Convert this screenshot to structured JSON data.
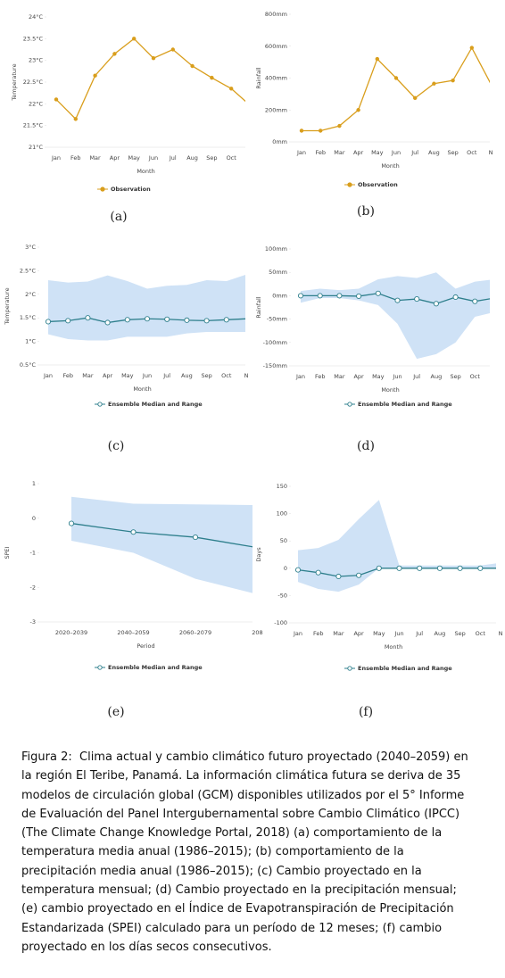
{
  "chart_data": [
    {
      "type": "line",
      "panel_label": "(a)",
      "ylabel": "Temperature",
      "xlabel": "Month",
      "categories": [
        "Jan",
        "Feb",
        "Mar",
        "Apr",
        "May",
        "Jun",
        "Jul",
        "Aug",
        "Sep",
        "Oct",
        null
      ],
      "series": [
        {
          "name": "Observation",
          "color": "#d99e1c",
          "values": [
            22.1,
            21.65,
            22.65,
            23.15,
            23.5,
            23.05,
            23.25,
            22.87,
            22.6,
            22.35,
            21.95
          ]
        }
      ],
      "ylim": [
        21,
        24
      ],
      "yticks": [
        {
          "value": 21,
          "label": "21°C"
        },
        {
          "value": 21.5,
          "label": "21.5°C"
        },
        {
          "value": 22,
          "label": "22°C"
        },
        {
          "value": 22.5,
          "label": "22.5°C"
        },
        {
          "value": 23,
          "label": "23°C"
        },
        {
          "value": 23.5,
          "label": "23.5°C"
        },
        {
          "value": 24,
          "label": "24°C"
        }
      ]
    },
    {
      "type": "line",
      "panel_label": "(b)",
      "ylabel": "Rainfall",
      "xlabel": "Month",
      "categories": [
        "Jan",
        "Feb",
        "Mar",
        "Apr",
        "May",
        "Jun",
        "Jul",
        "Aug",
        "Sep",
        "Oct",
        "N"
      ],
      "series": [
        {
          "name": "Observation",
          "color": "#d99e1c",
          "values": [
            70,
            70,
            100,
            200,
            520,
            400,
            275,
            365,
            385,
            590,
            365
          ]
        }
      ],
      "ylim": [
        0,
        800
      ],
      "yticks": [
        {
          "value": 0,
          "label": "0mm"
        },
        {
          "value": 200,
          "label": "200mm"
        },
        {
          "value": 400,
          "label": "400mm"
        },
        {
          "value": 600,
          "label": "600mm"
        },
        {
          "value": 800,
          "label": "800mm"
        }
      ]
    },
    {
      "type": "range",
      "panel_label": "(c)",
      "ylabel": "Temperature",
      "xlabel": "Month",
      "categories": [
        "Jan",
        "Feb",
        "Mar",
        "Apr",
        "May",
        "Jun",
        "Jul",
        "Aug",
        "Sep",
        "Oct",
        "N"
      ],
      "series": [
        {
          "name": "Ensemble Median and Range",
          "color": "#2e7f8c",
          "band_color": "#cfe2f6",
          "values": [
            1.42,
            1.44,
            1.5,
            1.4,
            1.46,
            1.48,
            1.47,
            1.45,
            1.44,
            1.46,
            1.48
          ],
          "high": [
            2.3,
            2.25,
            2.27,
            2.4,
            2.28,
            2.12,
            2.18,
            2.2,
            2.3,
            2.28,
            2.42
          ],
          "low": [
            1.15,
            1.05,
            1.02,
            1.02,
            1.1,
            1.1,
            1.1,
            1.17,
            1.2,
            1.2,
            1.2
          ]
        }
      ],
      "ylim": [
        0.5,
        3
      ],
      "yticks": [
        {
          "value": 0.5,
          "label": "0.5°C"
        },
        {
          "value": 1,
          "label": "1°C"
        },
        {
          "value": 1.5,
          "label": "1.5°C"
        },
        {
          "value": 2,
          "label": "2°C"
        },
        {
          "value": 2.5,
          "label": "2.5°C"
        },
        {
          "value": 3,
          "label": "3°C"
        }
      ]
    },
    {
      "type": "range",
      "panel_label": "(d)",
      "ylabel": "Rainfall",
      "xlabel": "Month",
      "categories": [
        "Jan",
        "Feb",
        "Mar",
        "Apr",
        "May",
        "Jun",
        "Jul",
        "Aug",
        "Sep",
        "Oct",
        null
      ],
      "series": [
        {
          "name": "Ensemble Median and Range",
          "color": "#2e7f8c",
          "band_color": "#cfe2f6",
          "values": [
            0,
            0,
            0,
            -1,
            5,
            -10,
            -7,
            -17,
            -3,
            -12,
            -5
          ],
          "high": [
            10,
            15,
            12,
            15,
            35,
            42,
            38,
            50,
            15,
            30,
            35
          ],
          "low": [
            -15,
            -5,
            -5,
            -10,
            -20,
            -60,
            -135,
            -125,
            -100,
            -45,
            -35
          ]
        }
      ],
      "ylim": [
        -150,
        100
      ],
      "yticks": [
        {
          "value": -150,
          "label": "-150mm"
        },
        {
          "value": -100,
          "label": "-100mm"
        },
        {
          "value": -50,
          "label": "-50mm"
        },
        {
          "value": 0,
          "label": "0mm"
        },
        {
          "value": 50,
          "label": "50mm"
        },
        {
          "value": 100,
          "label": "100mm"
        }
      ]
    },
    {
      "type": "range",
      "panel_label": "(e)",
      "ylabel": "SPEI",
      "xlabel": "Period",
      "categories": [
        "2020–2039",
        "2040–2059",
        "2060–2079",
        "208"
      ],
      "series": [
        {
          "name": "Ensemble Median and Range",
          "color": "#2e7f8c",
          "band_color": "#cfe2f6",
          "values": [
            -0.15,
            -0.4,
            -0.55,
            -0.85
          ],
          "high": [
            0.62,
            0.42,
            0.4,
            0.38
          ],
          "low": [
            -0.65,
            -1.0,
            -1.75,
            -2.2
          ]
        }
      ],
      "ylim": [
        -3,
        1
      ],
      "yticks": [
        -3,
        -2,
        -1,
        0,
        1
      ]
    },
    {
      "type": "range",
      "panel_label": "(f)",
      "ylabel": "Days",
      "xlabel": "Month",
      "categories": [
        "Jan",
        "Feb",
        "Mar",
        "Apr",
        "May",
        "Jun",
        "Jul",
        "Aug",
        "Sep",
        "Oct",
        "N"
      ],
      "series": [
        {
          "name": "Ensemble Median and Range",
          "color": "#2e7f8c",
          "band_color": "#cfe2f6",
          "values": [
            -3,
            -8,
            -15,
            -13,
            0,
            0,
            0,
            0,
            0,
            0,
            0
          ],
          "high": [
            33,
            37,
            52,
            90,
            125,
            5,
            5,
            5,
            5,
            5,
            10
          ],
          "low": [
            -25,
            -38,
            -43,
            -30,
            0,
            0,
            0,
            0,
            0,
            0,
            0
          ]
        }
      ],
      "ylim": [
        -100,
        150
      ],
      "yticks": [
        -100,
        -50,
        0,
        50,
        100,
        150
      ]
    }
  ],
  "caption": {
    "label": "Figura 2:",
    "text": "Clima actual y cambio climático futuro proyectado (2040–2059) en la región El Teribe, Panamá. La información climática futura se deriva de 35 modelos de circulación global (GCM) disponibles utilizados por el 5° Informe de Evaluación del Panel Intergubernamental sobre Cambio Climático (IPCC) (The Climate Change Knowledge Portal, 2018) (a) comportamiento de la temperatura media anual (1986–2015); (b) comportamiento de la precipitación media anual (1986–2015); (c) Cambio proyectado en la temperatura mensual; (d) Cambio proyectado en la precipitación mensual; (e) cambio proyectado en el Índice de Evapotranspiración de Precipitación Estandarizada (SPEI) calculado para un período de 12 meses; (f) cambio proyectado en los días secos consecutivos."
  }
}
